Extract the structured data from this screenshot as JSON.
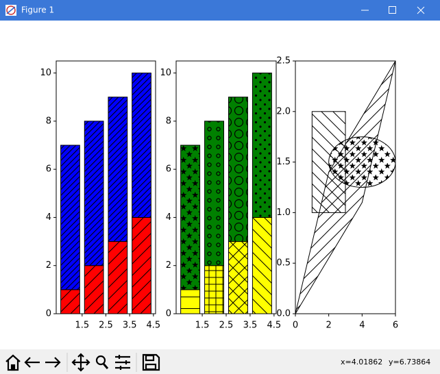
{
  "window": {
    "title": "Figure 1",
    "status_x": "x=4.01862",
    "status_y": "y=6.73864"
  },
  "chart_data": [
    {
      "type": "bar",
      "stacked": true,
      "x": [
        1,
        2,
        3,
        4
      ],
      "series": [
        {
          "color": "red",
          "hatch": "/",
          "values": [
            1,
            2,
            3,
            4
          ]
        },
        {
          "color": "blue",
          "hatch": "//",
          "values": [
            6,
            6,
            6,
            6
          ]
        }
      ],
      "xlim": [
        0.41,
        4.59
      ],
      "ylim": [
        0,
        10.5
      ],
      "xticks": [
        1.5,
        2.5,
        3.5,
        4.5
      ],
      "yticks": [
        0,
        2,
        4,
        6,
        8,
        10
      ]
    },
    {
      "type": "bar",
      "stacked": true,
      "x": [
        1,
        2,
        3,
        4
      ],
      "series": [
        {
          "color": "yellow",
          "hatches": [
            "-",
            "+",
            "x",
            "\\"
          ],
          "values": [
            1,
            2,
            3,
            4
          ]
        },
        {
          "color": "green",
          "hatches": [
            "*",
            "o",
            "O",
            "."
          ],
          "values": [
            6,
            6,
            6,
            6
          ]
        }
      ],
      "xlim": [
        0.41,
        4.59
      ],
      "ylim": [
        0,
        10.5
      ],
      "xticks": [
        1.5,
        2.5,
        3.5,
        4.5
      ],
      "yticks": [
        0,
        2,
        4,
        6,
        8,
        10
      ]
    },
    {
      "type": "patches",
      "patches": [
        {
          "kind": "polygon",
          "points": [
            [
              0,
              0
            ],
            [
              4,
              1.1
            ],
            [
              6,
              2.5
            ],
            [
              2,
              1.4
            ]
          ],
          "hatch": "/"
        },
        {
          "kind": "rect",
          "x": 1,
          "y": 1,
          "width": 2,
          "height": 1,
          "hatch": "\\"
        },
        {
          "kind": "ellipse",
          "cx": 4,
          "cy": 1.5,
          "width": 4,
          "height": 0.5,
          "hatch": "*"
        }
      ],
      "xlim": [
        0,
        6
      ],
      "ylim": [
        0,
        2.5
      ],
      "xticks": [
        0,
        2,
        4,
        6
      ],
      "yticks": [
        {
          "value": 0,
          "label": "0.0"
        },
        0.5,
        {
          "value": 1,
          "label": "1.0"
        },
        1.5,
        {
          "value": 2,
          "label": "2.0"
        },
        2.5
      ]
    }
  ]
}
